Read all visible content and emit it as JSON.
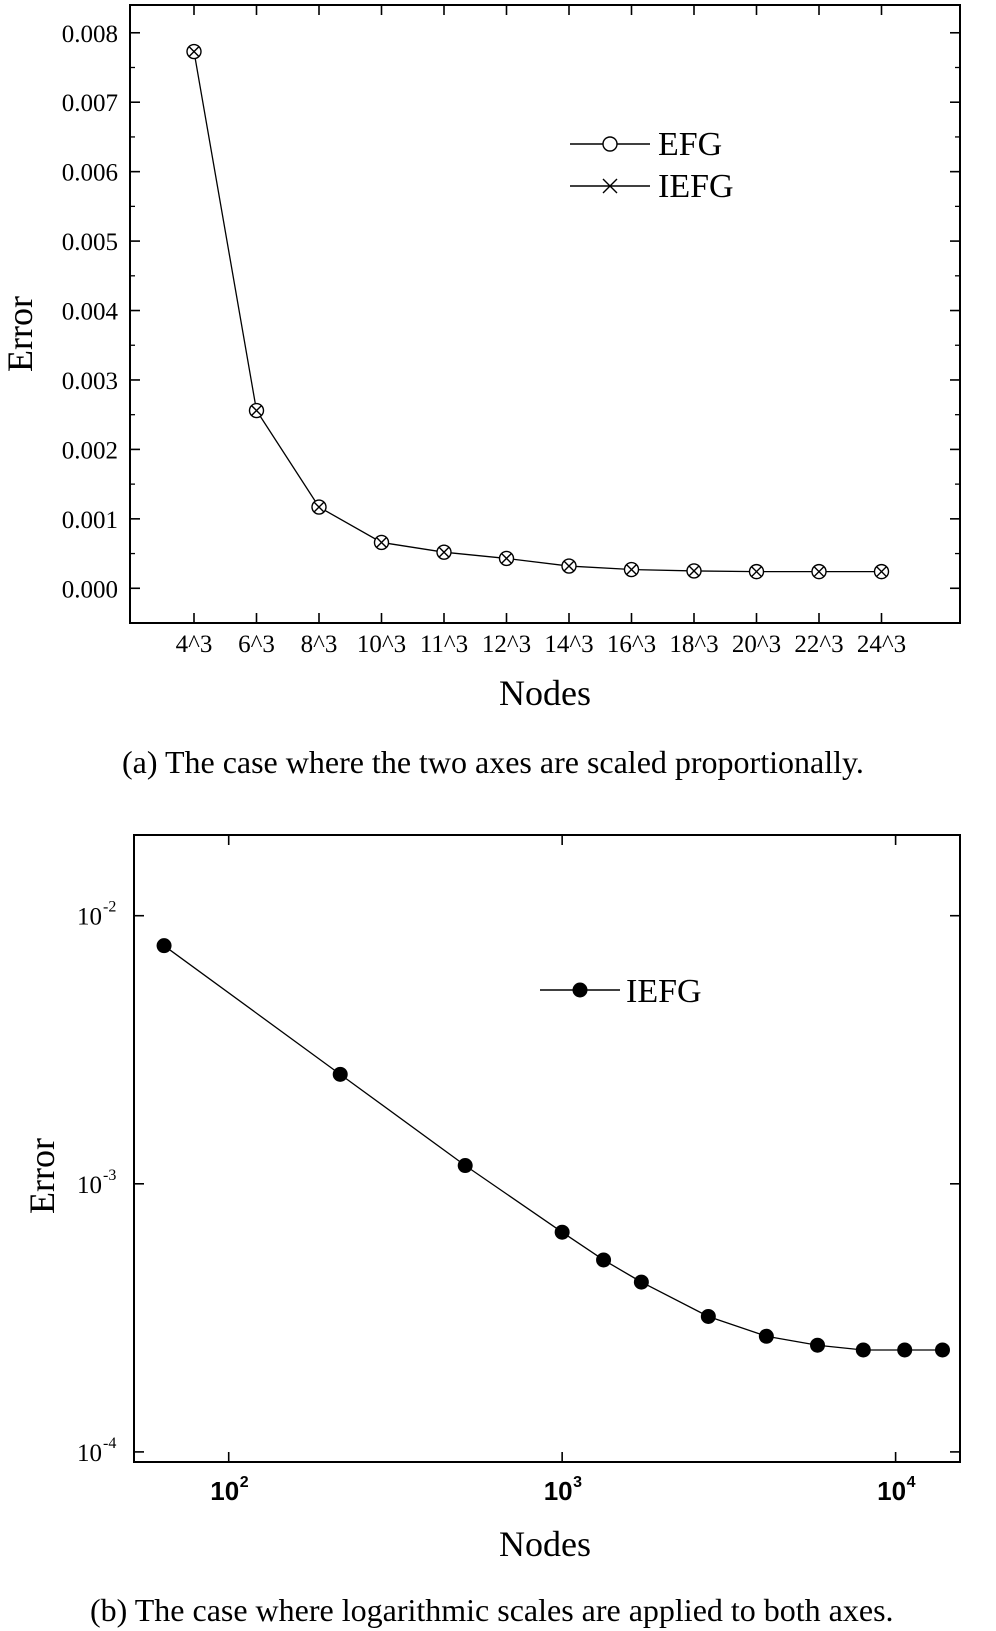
{
  "chart_data": [
    {
      "type": "line",
      "categories": [
        "4^3",
        "6^3",
        "8^3",
        "10^3",
        "11^3",
        "12^3",
        "14^3",
        "16^3",
        "18^3",
        "20^3",
        "22^3",
        "24^3"
      ],
      "series": [
        {
          "name": "EFG",
          "marker": "circle",
          "values": [
            0.00773,
            0.00256,
            0.00117,
            0.00066,
            0.00052,
            0.00043,
            0.00032,
            0.00027,
            0.00025,
            0.00024,
            0.00024,
            0.00024
          ]
        },
        {
          "name": "IEFG",
          "marker": "x",
          "values": [
            0.00773,
            0.00256,
            0.00117,
            0.00066,
            0.00052,
            0.00043,
            0.00032,
            0.00027,
            0.00025,
            0.00024,
            0.00024,
            0.00024
          ]
        }
      ],
      "yticks": [
        "0.000",
        "0.001",
        "0.002",
        "0.003",
        "0.004",
        "0.005",
        "0.006",
        "0.007",
        "0.008"
      ],
      "ylim": [
        -0.0005,
        0.0084
      ],
      "xlabel": "Nodes",
      "ylabel": "Error",
      "legend_position": "top-right",
      "caption": "(a) The case where the two axes are scaled proportionally."
    },
    {
      "type": "line",
      "x_scale": "log",
      "y_scale": "log",
      "series": [
        {
          "name": "IEFG",
          "marker": "filled-circle",
          "x": [
            64,
            216,
            512,
            1000,
            1331,
            1728,
            2744,
            4096,
            5832,
            8000,
            10648,
            13824
          ],
          "values": [
            0.00773,
            0.00256,
            0.00117,
            0.00066,
            0.00052,
            0.00043,
            0.00032,
            0.00027,
            0.00025,
            0.00024,
            0.00024,
            0.00024
          ]
        }
      ],
      "xticks": [
        {
          "base": "10",
          "exp": "2",
          "value": 100
        },
        {
          "base": "10",
          "exp": "3",
          "value": 1000
        },
        {
          "base": "10",
          "exp": "4",
          "value": 10000
        }
      ],
      "yticks": [
        {
          "base": "10",
          "exp": "-4",
          "value": 0.0001
        },
        {
          "base": "10",
          "exp": "-3",
          "value": 0.001
        },
        {
          "base": "10",
          "exp": "-2",
          "value": 0.01
        }
      ],
      "xlim": [
        52,
        15600
      ],
      "ylim": [
        9.17e-05,
        0.02
      ],
      "xlabel": "Nodes",
      "ylabel": "Error",
      "legend_position": "top-right",
      "caption": "(b) The case where logarithmic scales are applied to both axes."
    }
  ]
}
